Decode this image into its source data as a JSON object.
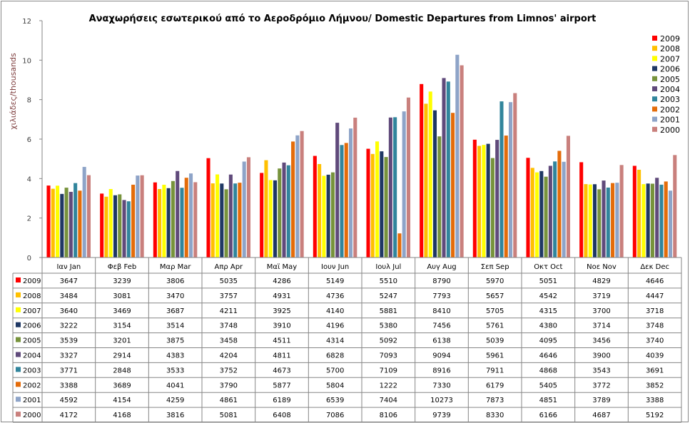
{
  "chart_data": {
    "type": "bar",
    "title": "Αναχωρήσεις εσωτερικού από το Αεροδρόμιο Λήμνου/ Domestic Departures from Limnos' airport",
    "xlabel": "",
    "ylabel": "χιλιάδες/thousands",
    "ylim": [
      0,
      12
    ],
    "yticks": [
      "0",
      "2",
      "4",
      "6",
      "8",
      "10",
      "12"
    ],
    "grid": false,
    "legend_position": "right",
    "categories": [
      "Ιαν  Jan",
      "Φεβ  Feb",
      "Μαρ  Mar",
      "Απρ  Apr",
      "Μαϊ  May",
      "Ιουν  Jun",
      "Ιουλ  Jul",
      "Αυγ  Aug",
      "Σεπ  Sep",
      "Οκτ  Oct",
      "Νοε  Nov",
      "Δεκ  Dec"
    ],
    "series": [
      {
        "name": "2009",
        "color": "#FF0000",
        "values": [
          3647,
          3239,
          3806,
          5035,
          4286,
          5149,
          5510,
          8790,
          5970,
          5051,
          4829,
          4646
        ]
      },
      {
        "name": "2008",
        "color": "#FFC000",
        "values": [
          3484,
          3081,
          3470,
          3757,
          4931,
          4736,
          5247,
          7793,
          5657,
          4542,
          3719,
          4447
        ]
      },
      {
        "name": "2007",
        "color": "#FFFF00",
        "values": [
          3640,
          3469,
          3687,
          4211,
          3925,
          4140,
          5881,
          8410,
          5705,
          4315,
          3700,
          3718
        ]
      },
      {
        "name": "2006",
        "color": "#1F3864",
        "values": [
          3222,
          3154,
          3514,
          3748,
          3910,
          4196,
          5380,
          7456,
          5761,
          4380,
          3714,
          3748
        ]
      },
      {
        "name": "2005",
        "color": "#77933C",
        "values": [
          3539,
          3201,
          3875,
          3458,
          4511,
          4314,
          5092,
          6138,
          5039,
          4095,
          3456,
          3740
        ]
      },
      {
        "name": "2004",
        "color": "#604A7B",
        "values": [
          3327,
          2914,
          4383,
          4204,
          4811,
          6828,
          7093,
          9094,
          5961,
          4646,
          3900,
          4039
        ]
      },
      {
        "name": "2003",
        "color": "#31859C",
        "values": [
          3771,
          2848,
          3533,
          3752,
          4673,
          5700,
          7109,
          8916,
          7911,
          4868,
          3543,
          3691
        ]
      },
      {
        "name": "2002",
        "color": "#E46C0A",
        "values": [
          3388,
          3689,
          4041,
          3790,
          5877,
          5804,
          1222,
          7330,
          6179,
          5405,
          3772,
          3852
        ]
      },
      {
        "name": "2001",
        "color": "#8EA4C8",
        "values": [
          4592,
          4154,
          4259,
          4861,
          6189,
          6539,
          7404,
          10273,
          7873,
          4851,
          3789,
          3388
        ]
      },
      {
        "name": "2000",
        "color": "#C9807D",
        "values": [
          4172,
          4168,
          3816,
          5081,
          6408,
          7086,
          8106,
          9739,
          8330,
          6166,
          4687,
          5192
        ]
      }
    ],
    "value_scale": 1000
  },
  "colors": {
    "axis": "#868686",
    "ylabel": "#7F3F3F",
    "title": "#000000"
  }
}
